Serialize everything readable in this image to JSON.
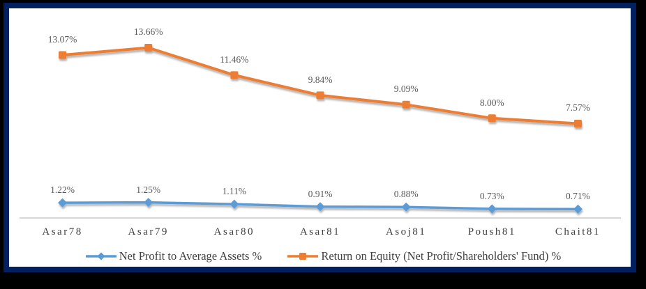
{
  "frame": {
    "outer_background": "#000000",
    "border_color": "#002060",
    "panel_background": "#FFFFFF"
  },
  "chart_data": {
    "type": "line",
    "categories": [
      "Asar78",
      "Asar79",
      "Asar80",
      "Asar81",
      "Asoj81",
      "Poush81",
      "Chait81"
    ],
    "series": [
      {
        "name": "Net Profit to Average Assets %",
        "values": [
          1.22,
          1.25,
          1.11,
          0.91,
          0.88,
          0.73,
          0.71
        ],
        "labels": [
          "1.22%",
          "1.25%",
          "1.11%",
          "0.91%",
          "0.88%",
          "0.73%",
          "0.71%"
        ],
        "color": "#5B9BD5",
        "marker": "diamond"
      },
      {
        "name": "Return on Equity (Net Profit/Shareholders' Fund) %",
        "values": [
          13.07,
          13.66,
          11.46,
          9.84,
          9.09,
          8.0,
          7.57
        ],
        "labels": [
          "13.07%",
          "13.66%",
          "11.46%",
          "9.84%",
          "9.09%",
          "8.00%",
          "7.57%"
        ],
        "color": "#ED7D31",
        "marker": "square"
      }
    ],
    "title": "",
    "xlabel": "",
    "ylabel": "",
    "ylim": [
      0,
      16
    ],
    "grid": false,
    "y_axis_visible": false,
    "legend_position": "bottom",
    "data_label_color": "#595959",
    "axis_line_color": "#D6D6D6",
    "tick_label_color": "#3D3D3D",
    "legend_text_color": "#404040"
  }
}
